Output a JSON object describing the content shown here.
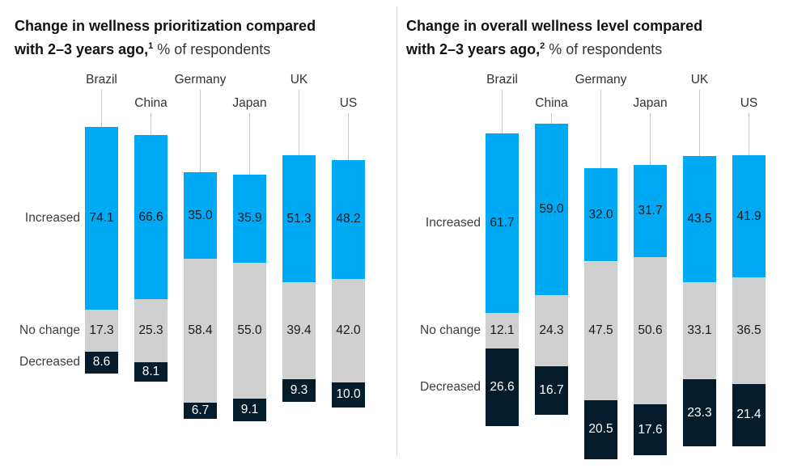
{
  "chart_data": [
    {
      "type": "bar",
      "stacked": true,
      "orientation": "vertical",
      "alignment": "middle-segment-centered",
      "value_labels": "inside-centered",
      "title": {
        "line1": "Change in wellness prioritization compared",
        "line2_bold": "with 2–3 years ago,",
        "footnote": "1",
        "unit": "% of respondents"
      },
      "categories": [
        "Brazil",
        "China",
        "Germany",
        "Japan",
        "UK",
        "US"
      ],
      "series": [
        {
          "name": "Increased",
          "values": [
            74.1,
            66.6,
            35.0,
            35.9,
            51.3,
            48.2
          ]
        },
        {
          "name": "No change",
          "values": [
            17.3,
            25.3,
            58.4,
            55.0,
            39.4,
            42.0
          ]
        },
        {
          "name": "Decreased",
          "values": [
            8.6,
            8.1,
            6.7,
            9.1,
            9.3,
            10.0
          ]
        }
      ],
      "series_colors": [
        "#00a9f4",
        "#d0d0d0",
        "#051c2c"
      ],
      "total_per_bar": 100
    },
    {
      "type": "bar",
      "stacked": true,
      "orientation": "vertical",
      "alignment": "middle-segment-centered",
      "value_labels": "inside-centered",
      "title": {
        "line1": "Change in overall wellness level compared",
        "line2_bold": "with 2–3 years ago,",
        "footnote": "2",
        "unit": "% of respondents"
      },
      "categories": [
        "Brazil",
        "China",
        "Germany",
        "Japan",
        "UK",
        "US"
      ],
      "series": [
        {
          "name": "Increased",
          "values": [
            61.7,
            59.0,
            32.0,
            31.7,
            43.5,
            41.9
          ]
        },
        {
          "name": "No change",
          "values": [
            12.1,
            24.3,
            47.5,
            50.6,
            33.1,
            36.5
          ]
        },
        {
          "name": "Decreased",
          "values": [
            26.6,
            16.7,
            20.5,
            17.6,
            23.3,
            21.4
          ]
        }
      ],
      "series_colors": [
        "#00a9f4",
        "#d0d0d0",
        "#051c2c"
      ],
      "total_per_bar": 100
    }
  ]
}
